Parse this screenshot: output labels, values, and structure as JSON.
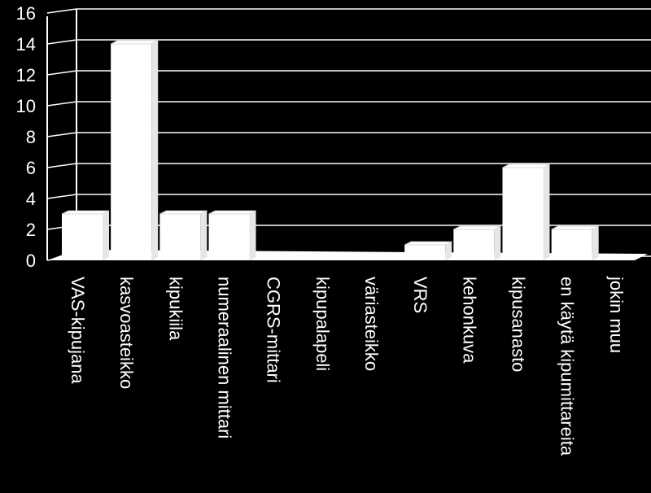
{
  "chart_data": {
    "type": "bar",
    "categories": [
      "VAS-kipujana",
      "kasvoasteikko",
      "kipukiila",
      "numeraalinen mittari",
      "CGRS-mittari",
      "kipupalapeli",
      "väriasteikko",
      "VRS",
      "kehonkuva",
      "kipusanasto",
      "en käytä kipumittareita",
      "jokin muu"
    ],
    "values": [
      3,
      14,
      3,
      3,
      0,
      0,
      0,
      1,
      2,
      6,
      2,
      0
    ],
    "ylim": [
      0,
      16
    ],
    "yticks": [
      "0",
      "2",
      "4",
      "6",
      "8",
      "10",
      "12",
      "14",
      "16"
    ],
    "grid": true,
    "style": "3d",
    "colors": {
      "background": "#000000",
      "bar": "#ffffff",
      "text": "#ffffff"
    }
  }
}
